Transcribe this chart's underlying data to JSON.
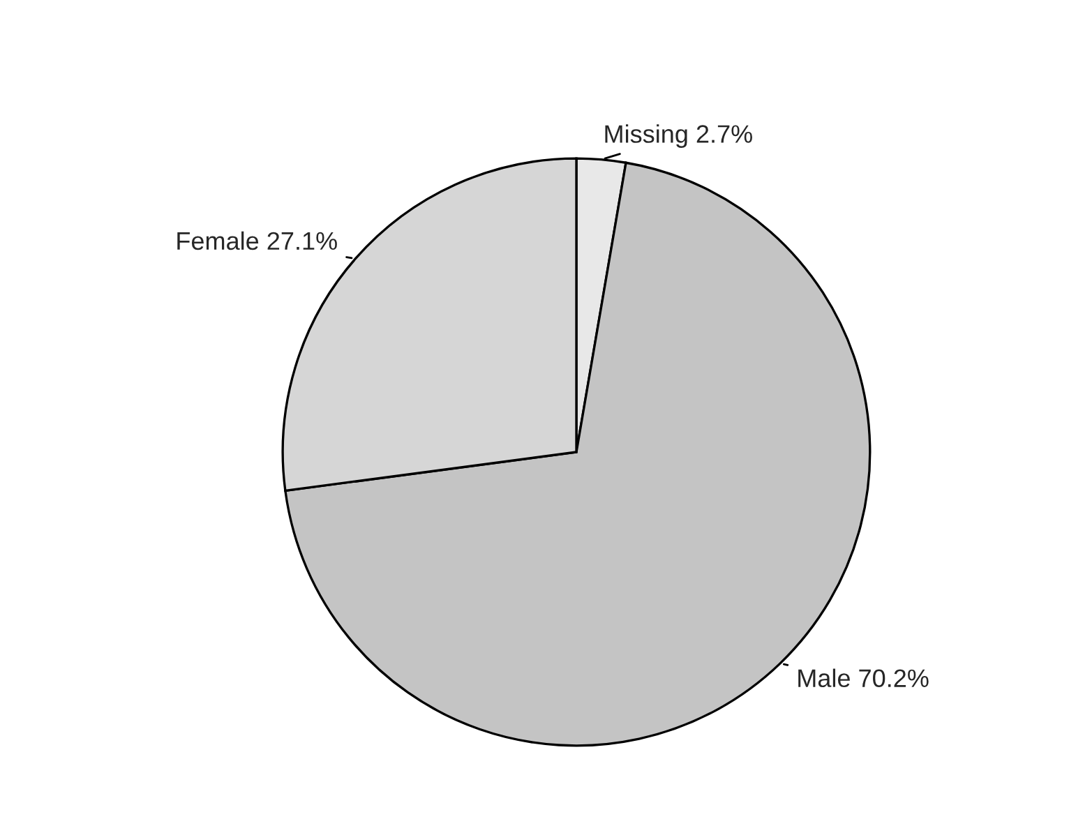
{
  "chart_data": {
    "type": "pie",
    "categories": [
      "Missing",
      "Male",
      "Female"
    ],
    "values": [
      2.7,
      70.2,
      27.1
    ],
    "value_labels": [
      "2.7%",
      "70.2%",
      "27.1%"
    ],
    "colors": [
      "#e8e8e8",
      "#c4c4c4",
      "#d6d6d6"
    ],
    "legend": false
  }
}
